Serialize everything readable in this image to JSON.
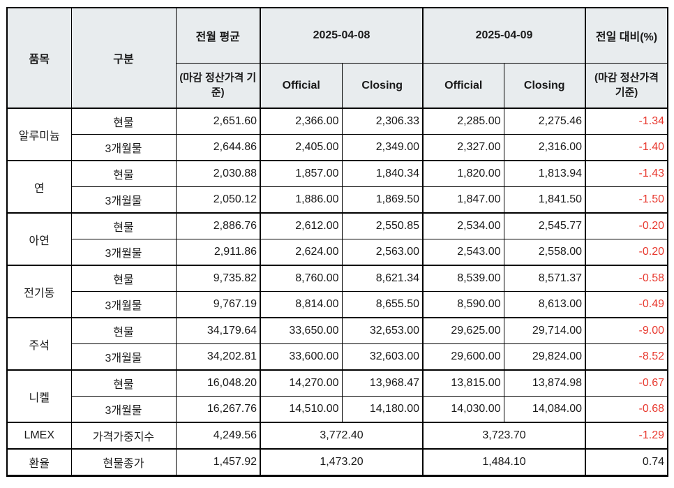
{
  "chart_data": {
    "type": "table",
    "header": {
      "item": "품목",
      "category": "구분",
      "prev_month_avg": "전월 평균",
      "prev_month_avg_sub": "(마감 정산가격 기준)",
      "date_1": "2025-04-08",
      "date_2": "2025-04-09",
      "official": "Official",
      "closing": "Closing",
      "day_change": "전일 대비(%)",
      "day_change_sub": "(마감 정산가격 기준)"
    },
    "groups": [
      {
        "item": "알루미늄",
        "rows": [
          {
            "category": "현물",
            "cells": [
              "2,651.60",
              "2,366.00",
              "2,306.33",
              "2,285.00",
              "2,275.46"
            ],
            "change": "-1.34"
          },
          {
            "category": "3개월물",
            "cells": [
              "2,644.86",
              "2,405.00",
              "2,349.00",
              "2,327.00",
              "2,316.00"
            ],
            "change": "-1.40"
          }
        ]
      },
      {
        "item": "연",
        "rows": [
          {
            "category": "현물",
            "cells": [
              "2,030.88",
              "1,857.00",
              "1,840.34",
              "1,820.00",
              "1,813.94"
            ],
            "change": "-1.43"
          },
          {
            "category": "3개월물",
            "cells": [
              "2,050.12",
              "1,886.00",
              "1,869.50",
              "1,847.00",
              "1,841.50"
            ],
            "change": "-1.50"
          }
        ]
      },
      {
        "item": "아연",
        "rows": [
          {
            "category": "현물",
            "cells": [
              "2,886.76",
              "2,612.00",
              "2,550.85",
              "2,534.00",
              "2,545.77"
            ],
            "change": "-0.20"
          },
          {
            "category": "3개월물",
            "cells": [
              "2,911.86",
              "2,624.00",
              "2,563.00",
              "2,543.00",
              "2,558.00"
            ],
            "change": "-0.20"
          }
        ]
      },
      {
        "item": "전기동",
        "rows": [
          {
            "category": "현물",
            "cells": [
              "9,735.82",
              "8,760.00",
              "8,621.34",
              "8,539.00",
              "8,571.37"
            ],
            "change": "-0.58"
          },
          {
            "category": "3개월물",
            "cells": [
              "9,767.19",
              "8,814.00",
              "8,655.50",
              "8,590.00",
              "8,613.00"
            ],
            "change": "-0.49"
          }
        ]
      },
      {
        "item": "주석",
        "rows": [
          {
            "category": "현물",
            "cells": [
              "34,179.64",
              "33,650.00",
              "32,653.00",
              "29,625.00",
              "29,714.00"
            ],
            "change": "-9.00"
          },
          {
            "category": "3개월물",
            "cells": [
              "34,202.81",
              "33,600.00",
              "32,603.00",
              "29,600.00",
              "29,824.00"
            ],
            "change": "-8.52"
          }
        ]
      },
      {
        "item": "니켈",
        "rows": [
          {
            "category": "현물",
            "cells": [
              "16,048.20",
              "14,270.00",
              "13,968.47",
              "13,815.00",
              "13,874.98"
            ],
            "change": "-0.67"
          },
          {
            "category": "3개월물",
            "cells": [
              "16,267.76",
              "14,510.00",
              "14,180.00",
              "14,030.00",
              "14,084.00"
            ],
            "change": "-0.68"
          }
        ]
      },
      {
        "item": "LMEX",
        "merged": true,
        "rows": [
          {
            "category": "가격가중지수",
            "cells": [
              "4,249.56",
              "3,772.40",
              "3,723.70"
            ],
            "change": "-1.29"
          }
        ]
      },
      {
        "item": "환율",
        "merged": true,
        "rows": [
          {
            "category": "현물종가",
            "cells": [
              "1,457.92",
              "1,473.20",
              "1,484.10"
            ],
            "change": "0.74"
          }
        ]
      }
    ]
  },
  "colors": {
    "header_bg": "#e8ecee",
    "negative_value": "#e8392f",
    "text": "#1a1a1a",
    "border": "#000000"
  }
}
